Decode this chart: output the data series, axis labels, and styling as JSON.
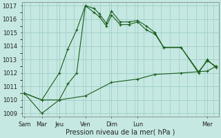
{
  "background_color": "#c5e8e2",
  "grid_color": "#9dccc4",
  "line_color": "#1a5c1a",
  "xlabel": "Pression niveau de la mer( hPa )",
  "ylim": [
    1008.75,
    1017.25
  ],
  "yticks": [
    1009,
    1010,
    1011,
    1012,
    1013,
    1014,
    1015,
    1016,
    1017
  ],
  "xlim": [
    -0.15,
    11.15
  ],
  "xtick_labels": [
    "Sam",
    "Mar",
    "Jeu",
    "Ven",
    "Dim",
    "Lun",
    "Mer"
  ],
  "xtick_positions": [
    0,
    1.0,
    2.0,
    3.5,
    5.0,
    6.5,
    10.5
  ],
  "line1_x": [
    0,
    1.0,
    2.0,
    2.5,
    3.0,
    3.5,
    4.0,
    4.3,
    4.7,
    5.0,
    5.5,
    6.0,
    6.5,
    7.0,
    7.5,
    8.0,
    9.0,
    10.0,
    10.5,
    11.0
  ],
  "line1_y": [
    1010.5,
    1010.0,
    1012.0,
    1013.8,
    1015.2,
    1017.0,
    1016.8,
    1016.4,
    1015.7,
    1016.6,
    1015.8,
    1015.8,
    1015.9,
    1015.5,
    1015.0,
    1013.9,
    1013.9,
    1012.1,
    1012.9,
    1012.5
  ],
  "line2_x": [
    0,
    1.0,
    2.0,
    2.5,
    3.0,
    3.5,
    4.0,
    4.3,
    4.7,
    5.0,
    5.5,
    6.0,
    6.5,
    7.0,
    7.5,
    8.0,
    9.0,
    10.0,
    10.5,
    11.0
  ],
  "line2_y": [
    1010.5,
    1010.0,
    1010.0,
    1011.2,
    1012.0,
    1017.0,
    1016.5,
    1016.2,
    1015.5,
    1016.3,
    1015.6,
    1015.6,
    1015.8,
    1015.2,
    1014.9,
    1013.9,
    1013.9,
    1012.0,
    1013.0,
    1012.4
  ],
  "line3_x": [
    0,
    1.0,
    2.0,
    3.5,
    5.0,
    6.5,
    7.5,
    9.0,
    10.5,
    11.0
  ],
  "line3_y": [
    1010.5,
    1009.0,
    1010.0,
    1010.3,
    1011.3,
    1011.55,
    1011.9,
    1012.0,
    1012.15,
    1012.5
  ],
  "ytick_fontsize": 6,
  "xtick_fontsize": 6,
  "xlabel_fontsize": 7
}
